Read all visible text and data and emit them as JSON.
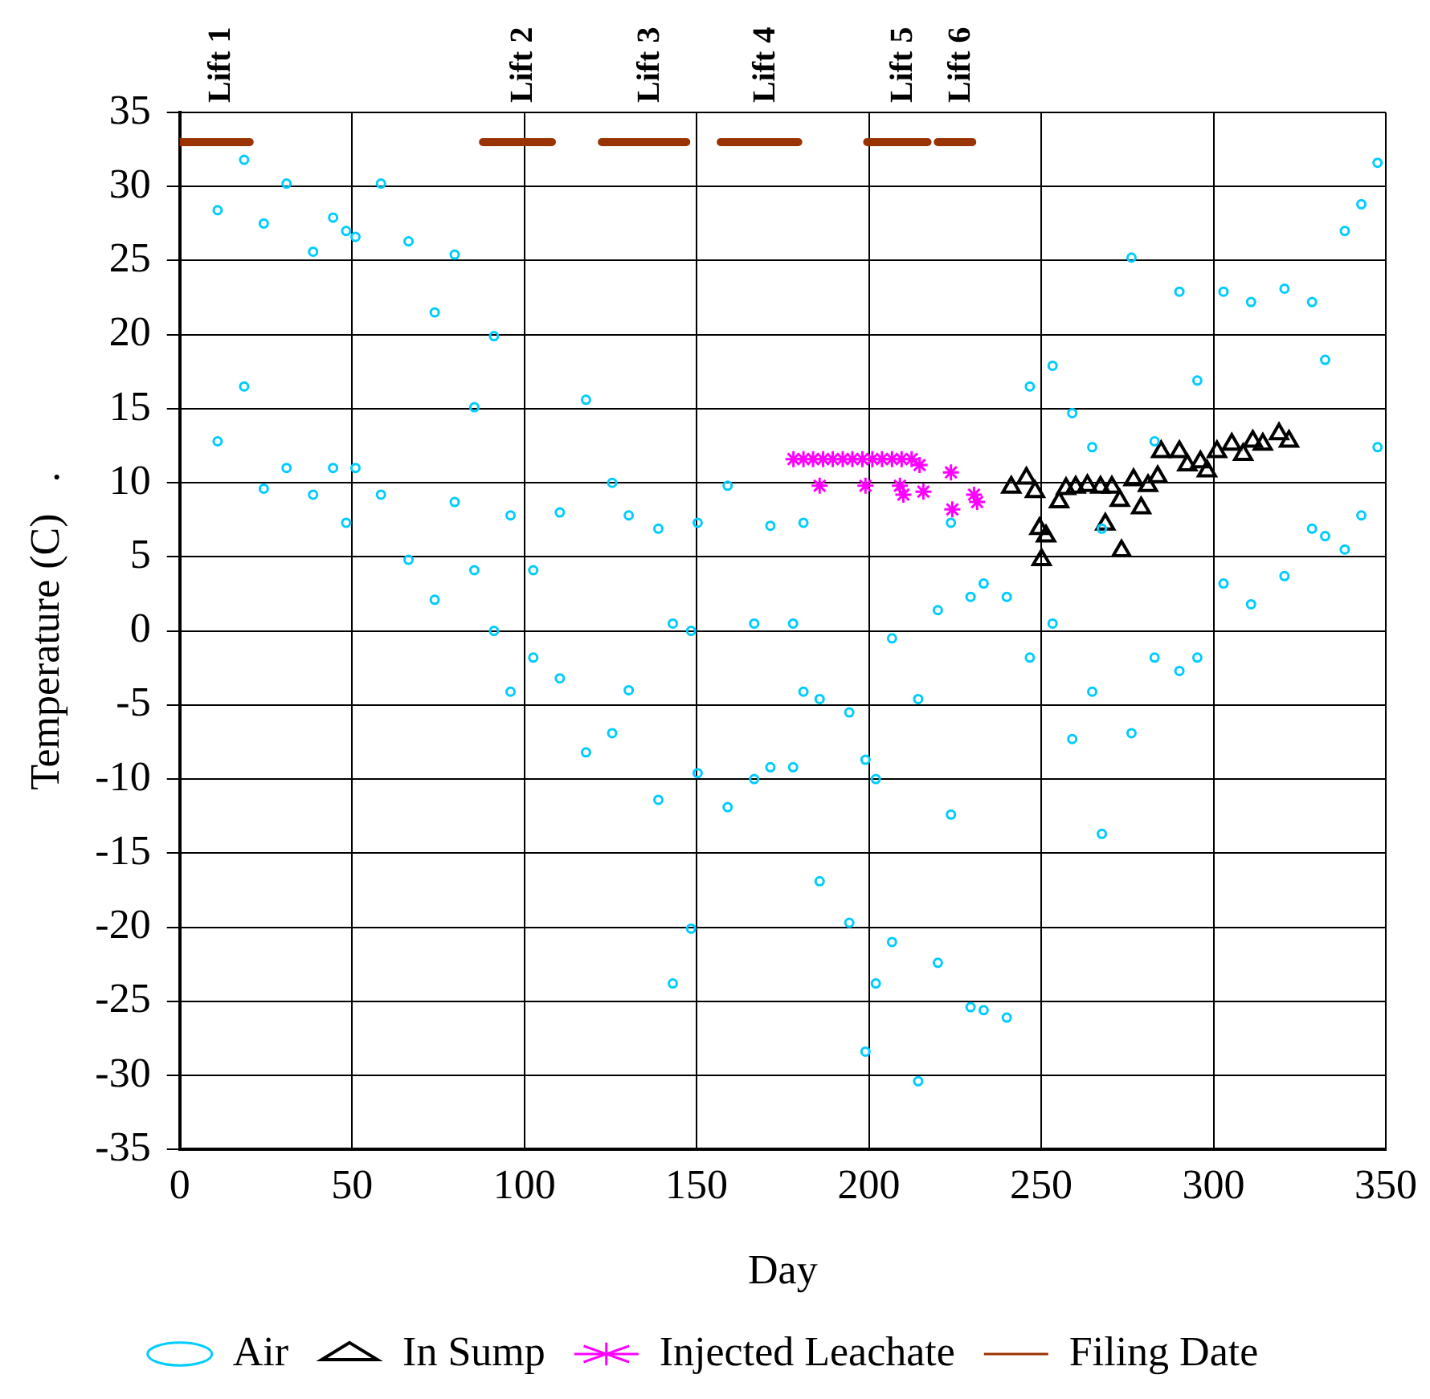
{
  "chart_data": {
    "type": "scatter",
    "xlabel": "Day",
    "ylabel": "Temperature (C)   .",
    "xlim": [
      0,
      350
    ],
    "xticks": [
      0,
      50,
      100,
      150,
      200,
      250,
      300,
      350
    ],
    "ylim": [
      -35,
      35
    ],
    "yticks": [
      -35,
      -30,
      -25,
      -20,
      -15,
      -10,
      -5,
      0,
      5,
      10,
      15,
      20,
      25,
      30,
      35
    ],
    "grid": true,
    "legend": "bottom",
    "annotations": [
      "Lift 1",
      "Lift 2",
      "Lift 3",
      "Lift 4",
      "Lift 5",
      "Lift 6"
    ],
    "series": [
      {
        "name": "Air",
        "type": "scatter",
        "marker": "circle",
        "color": "#00ccff",
        "x": [
          11,
          11,
          18.7,
          18.7,
          24.4,
          24.4,
          31,
          31,
          38.7,
          38.7,
          44.5,
          44.5,
          48.3,
          48.3,
          51,
          51,
          58.4,
          58.4,
          66.4,
          66.4,
          74,
          74,
          79.8,
          79.8,
          85.5,
          85.5,
          91.2,
          91.2,
          96,
          96,
          102.6,
          102.6,
          110.3,
          110.3,
          117.9,
          117.9,
          125.5,
          125.5,
          130.3,
          130.3,
          138.9,
          138.9,
          143.1,
          143.1,
          148.4,
          148.4,
          150.3,
          150.3,
          159,
          159,
          166.7,
          166.7,
          171.4,
          171.4,
          178,
          178,
          181,
          181,
          185.7,
          185.7,
          194.3,
          194.3,
          199,
          199,
          202,
          202,
          206.7,
          206.7,
          214.3,
          214.3,
          220,
          220,
          223.8,
          223.8,
          229.5,
          229.5,
          233.3,
          233.3,
          240,
          240,
          246.7,
          246.7,
          253.3,
          253.3,
          259,
          259,
          264.8,
          264.8,
          267.6,
          267.6,
          276.2,
          276.2,
          282.9,
          282.9,
          290.1,
          290.1,
          295.3,
          295.3,
          302.9,
          302.9,
          310.9,
          310.9,
          320.6,
          320.6,
          328.6,
          328.6,
          332.4,
          332.4,
          338.1,
          338.1,
          342.9,
          342.9,
          347.6,
          347.6
        ],
        "values": [
          28.4,
          12.8,
          31.8,
          16.5,
          27.5,
          9.6,
          30.2,
          11,
          25.6,
          9.2,
          27.9,
          11,
          27,
          7.3,
          26.6,
          11,
          30.2,
          9.2,
          26.3,
          4.8,
          21.5,
          2.1,
          25.4,
          8.7,
          15.1,
          4.1,
          19.9,
          0,
          7.8,
          -4.1,
          4.1,
          -1.8,
          8,
          -3.2,
          15.6,
          -8.2,
          10,
          -6.9,
          7.8,
          -4,
          6.9,
          -11.4,
          0.5,
          -23.8,
          0,
          -20.1,
          7.3,
          -9.6,
          9.8,
          -11.9,
          0.5,
          -10,
          7.1,
          -9.2,
          0.5,
          -9.2,
          7.3,
          -4.1,
          -4.6,
          -16.9,
          -5.5,
          -19.7,
          -8.7,
          -28.4,
          -10,
          -23.8,
          -0.5,
          -21,
          -4.6,
          -30.4,
          1.4,
          -22.4,
          7.3,
          -12.4,
          2.3,
          -25.4,
          3.2,
          -25.6,
          2.3,
          -26.1,
          16.5,
          -1.8,
          17.9,
          0.5,
          14.7,
          -7.3,
          12.4,
          -4.1,
          6.9,
          -13.7,
          25.2,
          -6.9,
          12.8,
          -1.8,
          22.9,
          -2.7,
          16.9,
          -1.8,
          22.9,
          3.2,
          22.2,
          1.8,
          23.1,
          3.7,
          22.2,
          6.9,
          18.3,
          6.4,
          27,
          5.5,
          28.8,
          7.8,
          31.6,
          12.4
        ]
      },
      {
        "name": "In Sump",
        "type": "scatter",
        "marker": "triangle",
        "color": "#000000",
        "x": [
          241.3,
          245.7,
          248.2,
          249.5,
          251.4,
          250.1,
          255.2,
          257.2,
          260,
          263.4,
          267.2,
          270.5,
          268.6,
          272.8,
          273.3,
          276.8,
          279,
          281,
          283.8,
          284.8,
          290.1,
          292.4,
          296.2,
          298.1,
          301,
          305.3,
          308.6,
          311.4,
          314.3,
          319,
          321.9
        ],
        "values": [
          9.7,
          10.3,
          9.4,
          6.9,
          6.4,
          4.8,
          8.7,
          9.6,
          9.7,
          9.8,
          9.7,
          9.7,
          7.2,
          8.8,
          5.4,
          10.2,
          8.3,
          9.8,
          10.4,
          12.1,
          12.1,
          11.2,
          11.4,
          10.8,
          12.1,
          12.6,
          11.9,
          12.8,
          12.6,
          13.3,
          12.8
        ]
      },
      {
        "name": "Injected Leachate",
        "type": "scatter",
        "marker": "cross",
        "color": "#ff00ff",
        "x": [
          178.1,
          181,
          183.8,
          186.7,
          189.5,
          192.4,
          195.2,
          198.1,
          201,
          203.8,
          206.7,
          209.5,
          212.4,
          185.7,
          199,
          209,
          210,
          214.7,
          215.8,
          223.8,
          224.2,
          230.5,
          231.4
        ],
        "values": [
          11.6,
          11.6,
          11.6,
          11.6,
          11.6,
          11.6,
          11.6,
          11.6,
          11.6,
          11.6,
          11.6,
          11.6,
          11.6,
          9.8,
          9.8,
          9.8,
          9.2,
          11.2,
          9.4,
          10.7,
          8.2,
          9.2,
          8.7
        ]
      },
      {
        "name": "Filing Date",
        "type": "line",
        "marker": "none",
        "color": "#993300",
        "x": [
          0,
          20.3,
          null,
          88,
          108,
          null,
          122.5,
          147,
          null,
          157,
          179.5,
          null,
          199.5,
          217,
          null,
          220,
          230
        ],
        "values": [
          33,
          33,
          null,
          33,
          33,
          null,
          33,
          33,
          null,
          33,
          33,
          null,
          33,
          33,
          null,
          33,
          33
        ]
      }
    ]
  }
}
